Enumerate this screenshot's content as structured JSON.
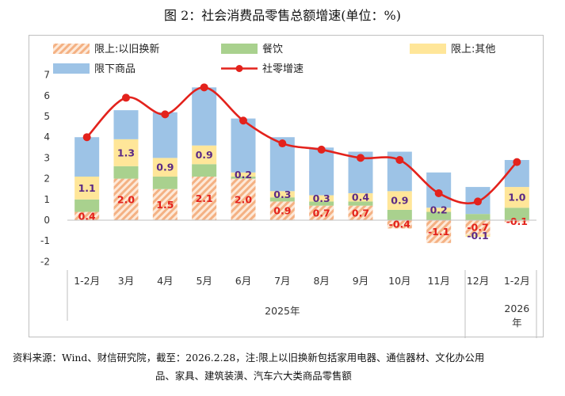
{
  "title": "图 2：社会消费品零售总额增速(单位：%)",
  "note_line1": "资料来源：Wind、财信研究院，截至：2026.2.28，注:限上以旧换新包括家用电器、通信器材、文化办公用",
  "note_line2": "品、家具、建筑装潢、汽车六大类商品零售额",
  "colors": {
    "trade_in": "#f4b183",
    "catering": "#a9d18e",
    "other": "#ffe699",
    "below": "#9dc3e6",
    "line": "#e3221c",
    "label_red": "#e3221c",
    "label_purple": "#5b2a86"
  },
  "chart_data": {
    "type": "bar",
    "stacked": true,
    "categories": [
      "1-2月",
      "3月",
      "4月",
      "5月",
      "6月",
      "7月",
      "8月",
      "9月",
      "10月",
      "11月",
      "12月",
      "1-2月"
    ],
    "year_groups": [
      {
        "label": "2025年",
        "from": 0,
        "to": 10
      },
      {
        "label": "2026年",
        "from": 11,
        "to": 11
      }
    ],
    "series": [
      {
        "name": "限上:以旧换新",
        "kind": "bar",
        "color_key": "trade_in",
        "pattern": "hatch",
        "label_color": "label_red",
        "values": [
          0.4,
          2.0,
          1.5,
          2.1,
          2.0,
          0.9,
          0.7,
          0.7,
          -0.4,
          -1.1,
          -0.7,
          -0.1
        ]
      },
      {
        "name": "餐饮",
        "kind": "bar",
        "color_key": "catering",
        "values": [
          0.6,
          0.6,
          0.6,
          0.6,
          0.1,
          0.2,
          0.2,
          0.2,
          0.5,
          0.4,
          0.3,
          0.6
        ]
      },
      {
        "name": "限上:其他",
        "kind": "bar",
        "color_key": "other",
        "label_color": "label_purple",
        "values": [
          1.1,
          1.3,
          0.9,
          0.9,
          0.2,
          0.3,
          0.3,
          0.4,
          0.9,
          0.2,
          -0.1,
          1.0
        ]
      },
      {
        "name": "限下商品",
        "kind": "bar",
        "color_key": "below",
        "values": [
          1.9,
          1.4,
          2.2,
          2.8,
          2.6,
          2.6,
          2.3,
          2.0,
          1.9,
          1.7,
          1.3,
          1.3
        ]
      },
      {
        "name": "社零增速",
        "kind": "line",
        "color_key": "line",
        "values": [
          4.0,
          5.9,
          5.1,
          6.4,
          4.8,
          3.7,
          3.4,
          3.0,
          2.9,
          1.3,
          0.9,
          2.8
        ]
      }
    ],
    "ylim": [
      -2,
      7
    ],
    "yticks": [
      -2,
      -1,
      0,
      1,
      2,
      3,
      4,
      5,
      6,
      7
    ],
    "legend_position": "top",
    "grid": false
  }
}
